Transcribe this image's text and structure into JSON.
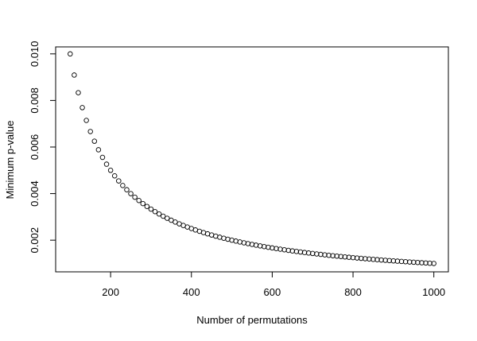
{
  "chart_data": {
    "type": "scatter",
    "title": "",
    "xlabel": "Number of permutations",
    "ylabel": "Minimum p-value",
    "xlim": [
      64,
      1036
    ],
    "ylim": [
      0.00064,
      0.0103
    ],
    "xticks": [
      200,
      400,
      600,
      800,
      1000
    ],
    "xtick_labels": [
      "200",
      "400",
      "600",
      "800",
      "1000"
    ],
    "yticks": [
      0.002,
      0.004,
      0.006,
      0.008,
      0.01
    ],
    "ytick_labels": [
      "0.002",
      "0.004",
      "0.006",
      "0.008",
      "0.010"
    ],
    "grid": false,
    "legend": "none",
    "marker": "open-circle",
    "colors": {
      "marker": "#000000",
      "axis": "#000000",
      "background": "#ffffff"
    },
    "x": [
      100,
      110,
      120,
      130,
      140,
      150,
      160,
      170,
      180,
      190,
      200,
      210,
      220,
      230,
      240,
      250,
      260,
      270,
      280,
      290,
      300,
      310,
      320,
      330,
      340,
      350,
      360,
      370,
      380,
      390,
      400,
      410,
      420,
      430,
      440,
      450,
      460,
      470,
      480,
      490,
      500,
      510,
      520,
      530,
      540,
      550,
      560,
      570,
      580,
      590,
      600,
      610,
      620,
      630,
      640,
      650,
      660,
      670,
      680,
      690,
      700,
      710,
      720,
      730,
      740,
      750,
      760,
      770,
      780,
      790,
      800,
      810,
      820,
      830,
      840,
      850,
      860,
      870,
      880,
      890,
      900,
      910,
      920,
      930,
      940,
      950,
      960,
      970,
      980,
      990,
      1000
    ],
    "y": [
      0.01,
      0.0090909,
      0.0083333,
      0.0076923,
      0.0071429,
      0.0066667,
      0.00625,
      0.0058824,
      0.0055556,
      0.0052632,
      0.005,
      0.0047619,
      0.0045455,
      0.0043478,
      0.0041667,
      0.004,
      0.0038462,
      0.0037037,
      0.0035714,
      0.0034483,
      0.0033333,
      0.0032258,
      0.003125,
      0.0030303,
      0.0029412,
      0.0028571,
      0.0027778,
      0.0027027,
      0.0026316,
      0.0025641,
      0.0025,
      0.002439,
      0.002381,
      0.0023256,
      0.0022727,
      0.0022222,
      0.0021739,
      0.0021277,
      0.0020833,
      0.0020408,
      0.002,
      0.0019608,
      0.0019231,
      0.0018868,
      0.0018519,
      0.0018182,
      0.0017857,
      0.0017544,
      0.0017241,
      0.0016949,
      0.0016667,
      0.0016393,
      0.0016129,
      0.0015873,
      0.0015625,
      0.0015385,
      0.0015152,
      0.0014925,
      0.0014706,
      0.0014493,
      0.0014286,
      0.0014085,
      0.0013889,
      0.0013699,
      0.0013514,
      0.0013333,
      0.0013158,
      0.0012987,
      0.0012821,
      0.0012658,
      0.00125,
      0.0012346,
      0.0012195,
      0.0012048,
      0.0011905,
      0.0011765,
      0.0011628,
      0.0011494,
      0.0011364,
      0.0011236,
      0.0011111,
      0.0010989,
      0.001087,
      0.0010753,
      0.0010638,
      0.0010526,
      0.0010417,
      0.0010309,
      0.0010204,
      0.0010101,
      0.001
    ]
  }
}
